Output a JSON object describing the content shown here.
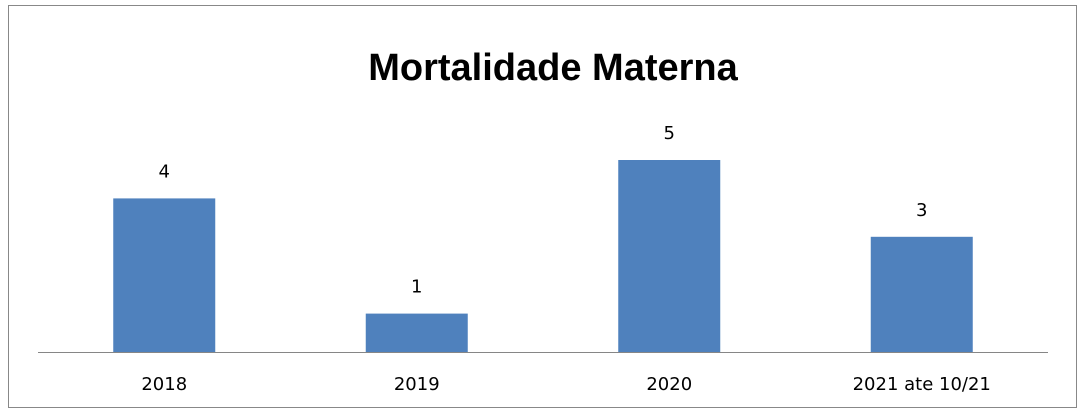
{
  "chart_data": {
    "type": "bar",
    "title": "Mortalidade Materna",
    "categories": [
      "2018",
      "2019",
      "2020",
      "2021 ate 10/21"
    ],
    "values": [
      4,
      1,
      5,
      3
    ],
    "color": "#4f81bd"
  }
}
